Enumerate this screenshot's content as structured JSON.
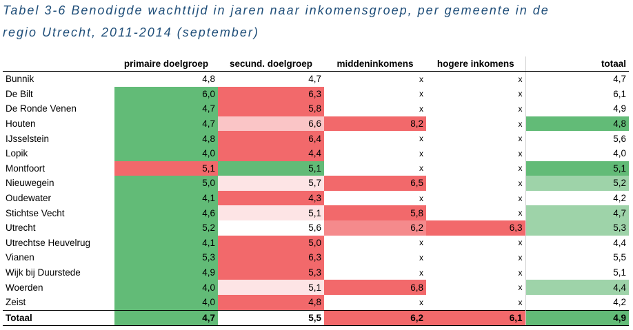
{
  "title_line1": "Tabel 3-6 Benodigde wachttijd in jaren naar inkomensgroep, per gemeente in de",
  "title_line2": "regio Utrecht, 2011-2014 (september)",
  "columns": [
    "",
    "primaire doelgroep",
    "secund. doelgroep",
    "middeninkomens",
    "hogere inkomens",
    "totaal"
  ],
  "rows": [
    {
      "name": "Bunnik",
      "values": [
        "4,8",
        "4,7",
        "x",
        "x",
        "4,7"
      ],
      "colors": [
        "",
        "",
        "",
        "",
        ""
      ]
    },
    {
      "name": "De Bilt",
      "values": [
        "6,0",
        "6,3",
        "x",
        "x",
        "6,1"
      ],
      "colors": [
        "g1",
        "r1",
        "",
        "",
        ""
      ]
    },
    {
      "name": "De Ronde Venen",
      "values": [
        "4,7",
        "5,8",
        "x",
        "x",
        "4,9"
      ],
      "colors": [
        "g1",
        "r1",
        "",
        "",
        ""
      ]
    },
    {
      "name": "Houten",
      "values": [
        "4,7",
        "6,6",
        "8,2",
        "x",
        "4,8"
      ],
      "colors": [
        "g1",
        "r3",
        "r1",
        "",
        "g1"
      ]
    },
    {
      "name": "IJsselstein",
      "values": [
        "4,8",
        "6,4",
        "x",
        "x",
        "5,6"
      ],
      "colors": [
        "g1",
        "r1",
        "",
        "",
        ""
      ]
    },
    {
      "name": "Lopik",
      "values": [
        "4,0",
        "4,4",
        "x",
        "x",
        "4,0"
      ],
      "colors": [
        "g1",
        "r1",
        "",
        "",
        ""
      ]
    },
    {
      "name": "Montfoort",
      "values": [
        "5,1",
        "5,1",
        "x",
        "x",
        "5,1"
      ],
      "colors": [
        "r1",
        "g1",
        "",
        "",
        "g1"
      ]
    },
    {
      "name": "Nieuwegein",
      "values": [
        "5,0",
        "5,7",
        "6,5",
        "x",
        "5,2"
      ],
      "colors": [
        "g1",
        "r4",
        "r1",
        "",
        "g2"
      ]
    },
    {
      "name": "Oudewater",
      "values": [
        "4,1",
        "4,3",
        "x",
        "x",
        "4,2"
      ],
      "colors": [
        "g1",
        "r1",
        "",
        "",
        ""
      ]
    },
    {
      "name": "Stichtse Vecht",
      "values": [
        "4,6",
        "5,1",
        "5,8",
        "x",
        "4,7"
      ],
      "colors": [
        "g1",
        "r4",
        "r1",
        "",
        "g2"
      ]
    },
    {
      "name": "Utrecht",
      "values": [
        "5,2",
        "5,6",
        "6,2",
        "6,3",
        "5,3"
      ],
      "colors": [
        "g1",
        "",
        "r2",
        "r1",
        "g2"
      ]
    },
    {
      "name": "Utrechtse Heuvelrug",
      "values": [
        "4,1",
        "5,0",
        "x",
        "x",
        "4,4"
      ],
      "colors": [
        "g1",
        "r1",
        "",
        "",
        ""
      ]
    },
    {
      "name": "Vianen",
      "values": [
        "5,3",
        "6,3",
        "x",
        "x",
        "5,5"
      ],
      "colors": [
        "g1",
        "r1",
        "",
        "",
        ""
      ]
    },
    {
      "name": "Wijk bij Duurstede",
      "values": [
        "4,9",
        "5,3",
        "x",
        "x",
        "5,1"
      ],
      "colors": [
        "g1",
        "r1",
        "",
        "",
        ""
      ]
    },
    {
      "name": "Woerden",
      "values": [
        "4,0",
        "5,1",
        "6,8",
        "x",
        "4,4"
      ],
      "colors": [
        "g1",
        "r4",
        "r1",
        "",
        "g2"
      ]
    },
    {
      "name": "Zeist",
      "values": [
        "4,0",
        "4,8",
        "x",
        "x",
        "4,2"
      ],
      "colors": [
        "g1",
        "r1",
        "",
        "",
        ""
      ]
    }
  ],
  "total_row": {
    "name": "Totaal",
    "values": [
      "4,7",
      "5,5",
      "6,2",
      "6,1",
      "4,9"
    ],
    "colors": [
      "g1",
      "",
      "r1",
      "r1",
      "g1"
    ]
  },
  "palette": {
    "g1": "#62bb77",
    "g2": "#9ed3a9",
    "g3": "#d9efdf",
    "r1": "#f2696b",
    "r2": "#f58a8c",
    "r3": "#fac5c6",
    "r4": "#fde4e5"
  }
}
